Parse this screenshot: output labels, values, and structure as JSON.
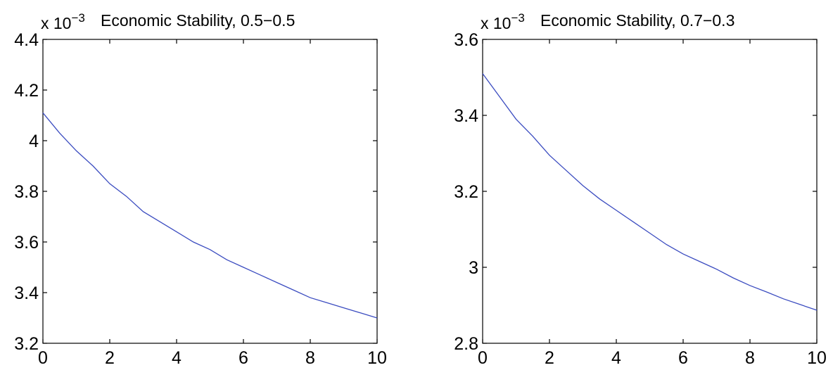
{
  "chart_data": [
    {
      "type": "line",
      "title": "Economic Stability, 0.5−0.5",
      "multiplier_label": "x 10",
      "multiplier_exponent": "−3",
      "xlim": [
        0,
        10
      ],
      "ylim": [
        3.2,
        4.4
      ],
      "xticks": [
        0,
        2,
        4,
        6,
        8,
        10
      ],
      "xtick_labels": [
        "0",
        "2",
        "4",
        "6",
        "8",
        "10"
      ],
      "yticks": [
        3.2,
        3.4,
        3.6,
        3.8,
        4.0,
        4.2,
        4.4
      ],
      "ytick_labels": [
        "3.2",
        "3.4",
        "3.6",
        "3.8",
        "4",
        "4.2",
        "4.4"
      ],
      "grid": false,
      "line_color": "#3b4cc0",
      "series": [
        {
          "x": [
            0,
            0.5,
            1,
            1.5,
            2,
            2.5,
            3,
            3.5,
            4,
            4.5,
            5,
            5.5,
            6,
            6.5,
            7,
            7.5,
            8,
            8.5,
            9,
            9.5,
            10
          ],
          "y": [
            4.11,
            4.03,
            3.96,
            3.9,
            3.83,
            3.78,
            3.72,
            3.68,
            3.64,
            3.6,
            3.57,
            3.53,
            3.5,
            3.47,
            3.44,
            3.41,
            3.38,
            3.36,
            3.34,
            3.32,
            3.3
          ]
        }
      ]
    },
    {
      "type": "line",
      "title": "Economic Stability, 0.7−0.3",
      "multiplier_label": "x 10",
      "multiplier_exponent": "−3",
      "xlim": [
        0,
        10
      ],
      "ylim": [
        2.8,
        3.6
      ],
      "xticks": [
        0,
        2,
        4,
        6,
        8,
        10
      ],
      "xtick_labels": [
        "0",
        "2",
        "4",
        "6",
        "8",
        "10"
      ],
      "yticks": [
        2.8,
        3.0,
        3.2,
        3.4,
        3.6
      ],
      "ytick_labels": [
        "2.8",
        "3",
        "3.2",
        "3.4",
        "3.6"
      ],
      "grid": false,
      "line_color": "#3b4cc0",
      "series": [
        {
          "x": [
            0,
            0.5,
            1,
            1.5,
            2,
            2.5,
            3,
            3.5,
            4,
            4.5,
            5,
            5.5,
            6,
            6.5,
            7,
            7.5,
            8,
            8.5,
            9,
            9.5,
            10
          ],
          "y": [
            3.51,
            3.45,
            3.39,
            3.345,
            3.295,
            3.255,
            3.215,
            3.18,
            3.15,
            3.12,
            3.09,
            3.06,
            3.035,
            3.015,
            2.995,
            2.972,
            2.952,
            2.935,
            2.917,
            2.902,
            2.887
          ]
        }
      ]
    }
  ]
}
